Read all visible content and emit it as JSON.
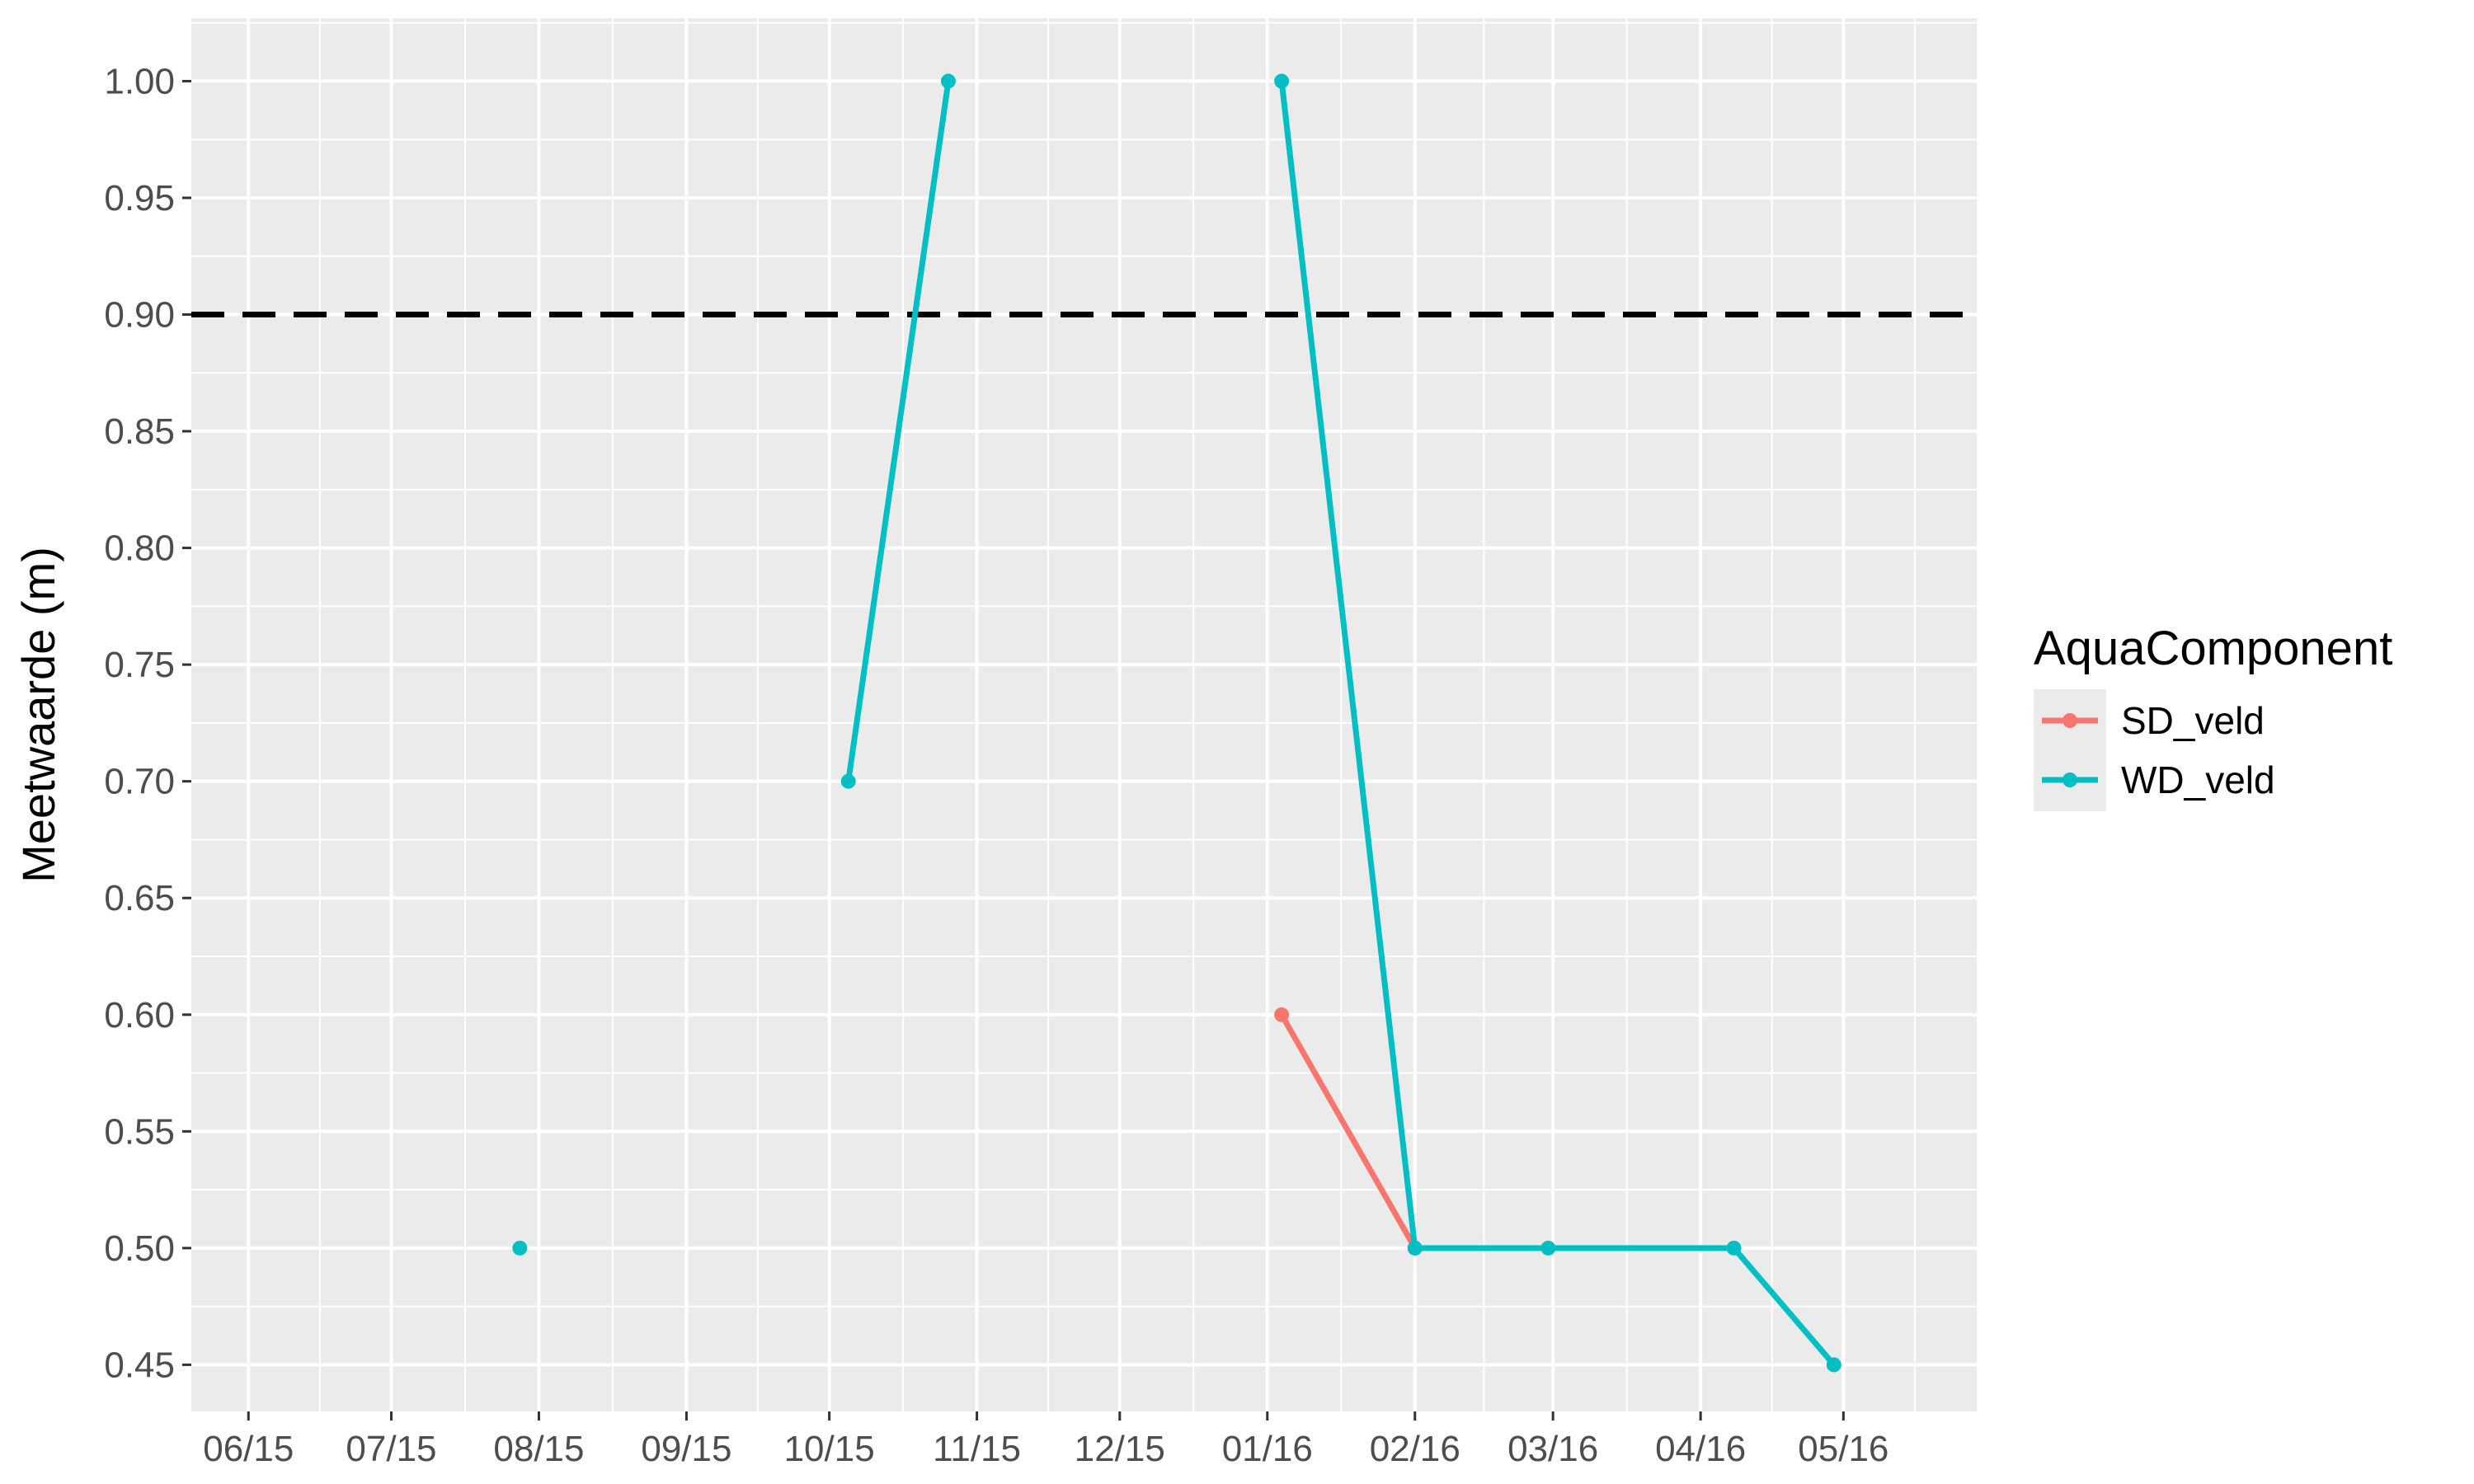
{
  "chart_data": {
    "type": "line",
    "title": "",
    "xlabel": "",
    "ylabel": "Meetwaarde (m)",
    "ylim": [
      0.43,
      1.027
    ],
    "xlim": [
      "2015-05-20",
      "2016-05-29"
    ],
    "yticks": [
      0.45,
      0.5,
      0.55,
      0.6,
      0.65,
      0.7,
      0.75,
      0.8,
      0.85,
      0.9,
      0.95,
      1.0
    ],
    "ytick_labels": [
      "0.45",
      "0.50",
      "0.55",
      "0.60",
      "0.65",
      "0.70",
      "0.75",
      "0.80",
      "0.85",
      "0.90",
      "0.95",
      "1.00"
    ],
    "xticks": [
      "2015-06-01",
      "2015-07-01",
      "2015-08-01",
      "2015-09-01",
      "2015-10-01",
      "2015-11-01",
      "2015-12-01",
      "2016-01-01",
      "2016-02-01",
      "2016-03-01",
      "2016-04-01",
      "2016-05-01"
    ],
    "xtick_labels": [
      "06/15",
      "07/15",
      "08/15",
      "09/15",
      "10/15",
      "11/15",
      "12/15",
      "01/16",
      "02/16",
      "03/16",
      "04/16",
      "05/16"
    ],
    "reference_line": {
      "y": 0.9,
      "style": "dashed",
      "color": "#000000"
    },
    "grid": true,
    "legend": {
      "title": "AquaComponent",
      "position": "right"
    },
    "series": [
      {
        "name": "SD_veld",
        "color": "#F8766D",
        "points": [
          {
            "x": "2016-01-04",
            "y": 0.6
          },
          {
            "x": "2016-02-01",
            "y": 0.5
          }
        ]
      },
      {
        "name": "WD_veld",
        "color": "#00BFC4",
        "segments": [
          [
            {
              "x": "2015-07-28",
              "y": 0.5
            }
          ],
          [
            {
              "x": "2015-10-05",
              "y": 0.7
            },
            {
              "x": "2015-10-26",
              "y": 1.0
            }
          ],
          [
            {
              "x": "2016-01-04",
              "y": 1.0
            },
            {
              "x": "2016-02-01",
              "y": 0.5
            },
            {
              "x": "2016-02-29",
              "y": 0.5
            },
            {
              "x": "2016-04-08",
              "y": 0.5
            },
            {
              "x": "2016-04-29",
              "y": 0.45
            }
          ]
        ]
      }
    ]
  }
}
